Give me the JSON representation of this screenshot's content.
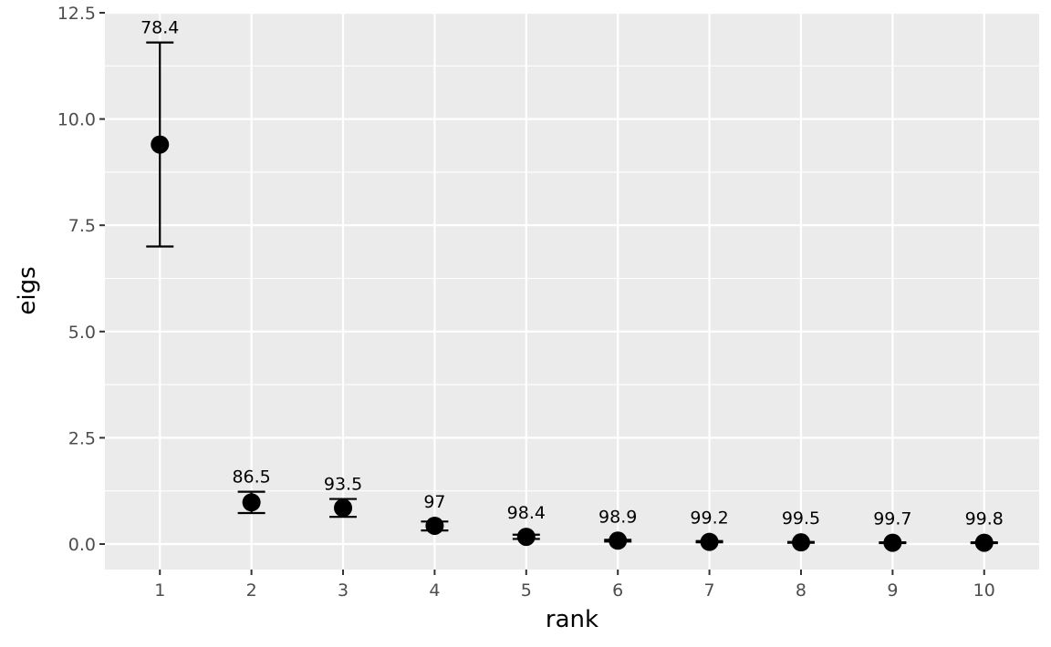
{
  "chart_data": {
    "type": "scatter",
    "xlabel": "rank",
    "ylabel": "eigs",
    "xlim": [
      0.4,
      10.6
    ],
    "ylim": [
      -0.6,
      12.5
    ],
    "x_ticks": [
      1,
      2,
      3,
      4,
      5,
      6,
      7,
      8,
      9,
      10
    ],
    "x_tick_labels": [
      "1",
      "2",
      "3",
      "4",
      "5",
      "6",
      "7",
      "8",
      "9",
      "10"
    ],
    "y_ticks": [
      0,
      2.5,
      5,
      7.5,
      10,
      12.5
    ],
    "y_tick_labels": [
      "0.0",
      "2.5",
      "5.0",
      "7.5",
      "10.0",
      "12.5"
    ],
    "grid": true,
    "series": [
      {
        "x": [
          1,
          2,
          3,
          4,
          5,
          6,
          7,
          8,
          9,
          10
        ],
        "y": [
          9.4,
          0.98,
          0.85,
          0.43,
          0.17,
          0.08,
          0.05,
          0.04,
          0.03,
          0.03
        ],
        "err_low": [
          7.0,
          0.73,
          0.64,
          0.32,
          0.12,
          0.06,
          0.04,
          0.03,
          0.02,
          0.02
        ],
        "err_high": [
          11.8,
          1.23,
          1.06,
          0.53,
          0.22,
          0.1,
          0.07,
          0.05,
          0.04,
          0.04
        ],
        "labels": [
          "78.4",
          "86.5",
          "93.5",
          "97",
          "98.4",
          "98.9",
          "99.2",
          "99.5",
          "99.7",
          "99.8"
        ]
      }
    ],
    "colors": {
      "panel": "#ebebeb",
      "grid": "#ffffff",
      "points": "#000000",
      "tick_text": "#4d4d4d"
    }
  }
}
